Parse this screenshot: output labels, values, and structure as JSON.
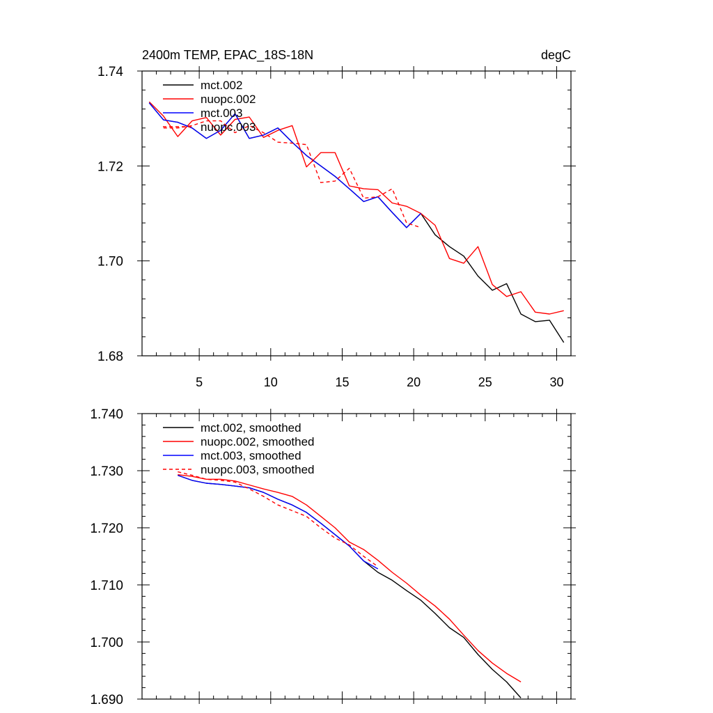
{
  "chart_data": [
    {
      "type": "line",
      "title": "2400m TEMP, EPAC_18S-18N",
      "units": "degC",
      "xlabel": "",
      "ylabel": "",
      "xlim": [
        1,
        31
      ],
      "ylim": [
        1.68,
        1.74
      ],
      "xticks": [
        5,
        10,
        15,
        20,
        25,
        30
      ],
      "xtick_labels": [
        "5",
        "10",
        "15",
        "20",
        "25",
        "30"
      ],
      "yticks": [
        1.68,
        1.7,
        1.72,
        1.74
      ],
      "ytick_labels": [
        "1.68",
        "1.70",
        "1.72",
        "1.74"
      ],
      "grid": false,
      "legend_position": "top-left",
      "series": [
        {
          "name": "mct.002",
          "color": "#000000",
          "dash": "solid",
          "x": [
            1.5,
            2.5,
            3.5,
            4.5,
            5.5,
            6.5,
            7.5,
            8.5,
            9.5,
            10.5,
            11.5,
            12.5,
            13.5,
            14.5,
            15.5,
            16.5,
            17.5,
            18.5,
            19.5,
            20.5,
            21.5,
            22.5,
            23.5,
            24.5,
            25.5,
            26.5,
            27.5,
            28.5,
            29.5,
            30.5
          ],
          "y": [
            1.7333,
            1.7297,
            1.7292,
            1.728,
            1.7258,
            1.7275,
            1.731,
            1.7258,
            1.7265,
            1.728,
            1.725,
            1.7222,
            1.72,
            1.7178,
            1.7152,
            1.7125,
            1.7135,
            1.7102,
            1.707,
            1.71,
            1.7055,
            1.703,
            1.701,
            1.6968,
            1.6938,
            1.6952,
            1.6888,
            1.6872,
            1.6875,
            1.6828
          ]
        },
        {
          "name": "nuopc.002",
          "color": "#ff0000",
          "dash": "solid",
          "x": [
            1.5,
            2.5,
            3.5,
            4.5,
            5.5,
            6.5,
            7.5,
            8.5,
            9.5,
            10.5,
            11.5,
            12.5,
            13.5,
            14.5,
            15.5,
            16.5,
            17.5,
            18.5,
            19.5,
            20.5,
            21.5,
            22.5,
            23.5,
            24.5,
            25.5,
            26.5,
            27.5,
            28.5,
            29.5,
            30.5
          ],
          "y": [
            1.7335,
            1.7305,
            1.7262,
            1.7295,
            1.7302,
            1.7265,
            1.7298,
            1.7303,
            1.726,
            1.7275,
            1.7285,
            1.7198,
            1.7228,
            1.7228,
            1.7158,
            1.7152,
            1.715,
            1.7122,
            1.7115,
            1.71,
            1.7075,
            1.7005,
            1.6995,
            1.703,
            1.695,
            1.6925,
            1.6935,
            1.6892,
            1.6888,
            1.6895
          ]
        },
        {
          "name": "mct.003",
          "color": "#0000ff",
          "dash": "solid",
          "x": [
            1.5,
            2.5,
            3.5,
            4.5,
            5.5,
            6.5,
            7.5,
            8.5,
            9.5,
            10.5,
            11.5,
            12.5,
            13.5,
            14.5,
            15.5,
            16.5,
            17.5,
            18.5,
            19.5,
            20.5
          ],
          "y": [
            1.7333,
            1.7297,
            1.7292,
            1.728,
            1.7258,
            1.7275,
            1.731,
            1.7258,
            1.7265,
            1.728,
            1.725,
            1.7222,
            1.72,
            1.7178,
            1.7152,
            1.7125,
            1.7135,
            1.7102,
            1.707,
            1.71
          ]
        },
        {
          "name": "nuopc.003",
          "color": "#ff0000",
          "dash": "dashed",
          "x": [
            2.5,
            3.5,
            4.5,
            5.5,
            6.5,
            7.5,
            8.5,
            9.5,
            10.5,
            11.5,
            12.5,
            13.5,
            14.5,
            15.5,
            16.5,
            17.5,
            18.5,
            19.5,
            20.5
          ],
          "y": [
            1.728,
            1.728,
            1.7285,
            1.7295,
            1.7295,
            1.727,
            1.7285,
            1.727,
            1.725,
            1.7248,
            1.7245,
            1.7165,
            1.7168,
            1.7195,
            1.7132,
            1.7135,
            1.7152,
            1.708,
            1.707
          ]
        }
      ]
    },
    {
      "type": "line",
      "title": "",
      "xlabel": "",
      "ylabel": "",
      "xlim": [
        1,
        31
      ],
      "ylim": [
        1.69,
        1.74
      ],
      "xticks": [
        5,
        10,
        15,
        20,
        25,
        30
      ],
      "yticks": [
        1.69,
        1.7,
        1.71,
        1.72,
        1.73,
        1.74
      ],
      "ytick_labels": [
        "1.690",
        "1.700",
        "1.710",
        "1.720",
        "1.730",
        "1.740"
      ],
      "grid": false,
      "legend_position": "top-left",
      "series": [
        {
          "name": "mct.002, smoothed",
          "color": "#000000",
          "dash": "solid",
          "x": [
            3.5,
            4.5,
            5.5,
            6.5,
            7.5,
            8.5,
            9.5,
            10.5,
            11.5,
            12.5,
            13.5,
            14.5,
            15.5,
            16.5,
            17.5,
            18.5,
            19.5,
            20.5,
            21.5,
            22.5,
            23.5,
            24.5,
            25.5,
            26.5,
            27.5
          ],
          "y": [
            1.7292,
            1.7283,
            1.7278,
            1.7276,
            1.7273,
            1.727,
            1.7262,
            1.725,
            1.724,
            1.7227,
            1.7208,
            1.7188,
            1.7168,
            1.7142,
            1.7122,
            1.7108,
            1.709,
            1.7073,
            1.705,
            1.7025,
            1.7008,
            1.6978,
            1.6952,
            1.693,
            1.6902
          ]
        },
        {
          "name": "nuopc.002, smoothed",
          "color": "#ff0000",
          "dash": "solid",
          "x": [
            3.5,
            4.5,
            5.5,
            6.5,
            7.5,
            8.5,
            9.5,
            10.5,
            11.5,
            12.5,
            13.5,
            14.5,
            15.5,
            16.5,
            17.5,
            18.5,
            19.5,
            20.5,
            21.5,
            22.5,
            23.5,
            24.5,
            25.5,
            26.5,
            27.5
          ],
          "y": [
            1.7293,
            1.729,
            1.7285,
            1.7285,
            1.7282,
            1.7275,
            1.7268,
            1.7262,
            1.7255,
            1.724,
            1.722,
            1.72,
            1.7175,
            1.7162,
            1.7143,
            1.7122,
            1.7103,
            1.7082,
            1.7063,
            1.704,
            1.7012,
            1.6985,
            1.6963,
            1.6945,
            1.693
          ]
        },
        {
          "name": "mct.003, smoothed",
          "color": "#0000ff",
          "dash": "solid",
          "x": [
            3.5,
            4.5,
            5.5,
            6.5,
            7.5,
            8.5,
            9.5,
            10.5,
            11.5,
            12.5,
            13.5,
            14.5,
            15.5,
            16.5,
            17.5
          ],
          "y": [
            1.7292,
            1.7283,
            1.7278,
            1.7276,
            1.7273,
            1.727,
            1.7262,
            1.725,
            1.724,
            1.7227,
            1.7208,
            1.7188,
            1.7168,
            1.7142,
            1.7128
          ]
        },
        {
          "name": "nuopc.003, smoothed",
          "color": "#ff0000",
          "dash": "dashed",
          "x": [
            3.5,
            4.5,
            5.5,
            6.5,
            7.5,
            8.5,
            9.5,
            10.5,
            11.5,
            12.5,
            13.5,
            14.5,
            15.5,
            16.5,
            17.5
          ],
          "y": [
            1.7298,
            1.7292,
            1.7285,
            1.7283,
            1.728,
            1.7268,
            1.7255,
            1.724,
            1.723,
            1.722,
            1.72,
            1.7182,
            1.717,
            1.715,
            1.7132
          ]
        }
      ]
    }
  ]
}
